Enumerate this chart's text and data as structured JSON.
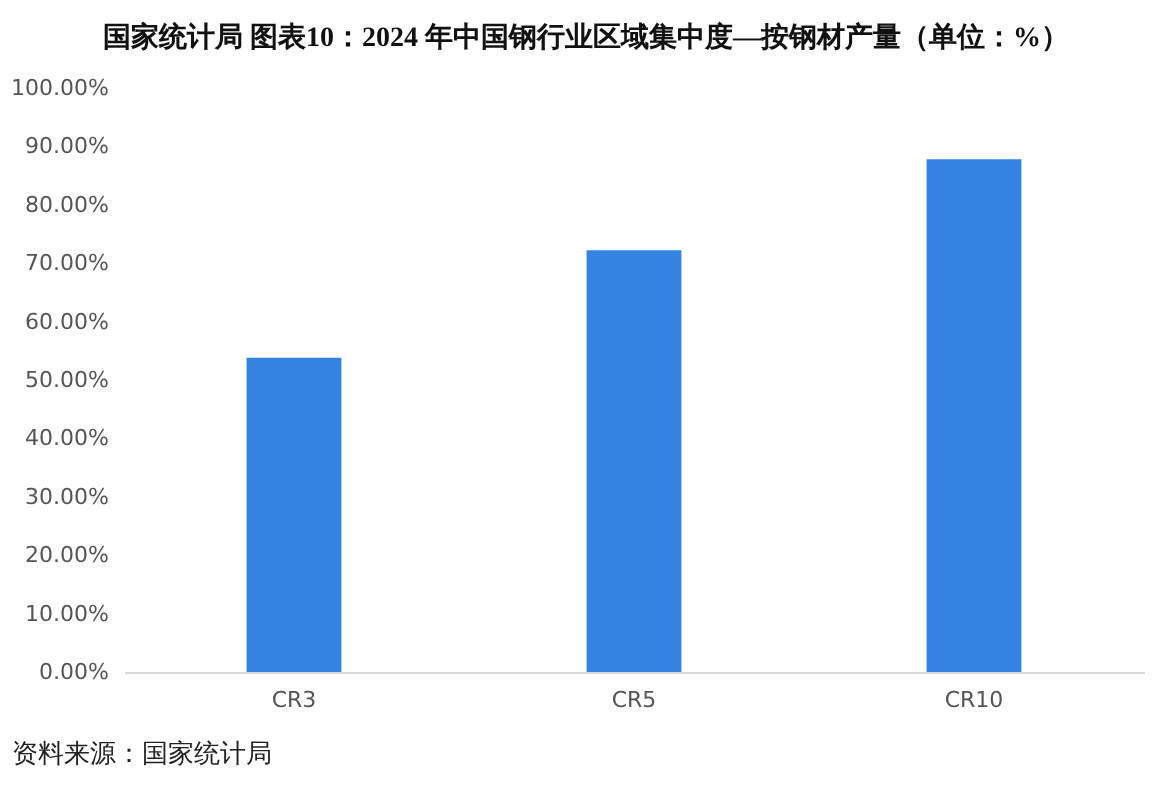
{
  "chart_data": {
    "type": "bar",
    "title": "国家统计局  图表10：2024 年中国钢行业区域集中度—按钢材产量（单位：%）",
    "categories": [
      "CR3",
      "CR5",
      "CR10"
    ],
    "values": [
      53.8,
      72.2,
      87.8
    ],
    "color": "#3584e4",
    "ylim": [
      0,
      100
    ],
    "yticks": [
      {
        "value": 0,
        "label": "0.00%"
      },
      {
        "value": 10,
        "label": "10.00%"
      },
      {
        "value": 20,
        "label": "20.00%"
      },
      {
        "value": 30,
        "label": "30.00%"
      },
      {
        "value": 40,
        "label": "40.00%"
      },
      {
        "value": 50,
        "label": "50.00%"
      },
      {
        "value": 60,
        "label": "60.00%"
      },
      {
        "value": 70,
        "label": "70.00%"
      },
      {
        "value": 80,
        "label": "80.00%"
      },
      {
        "value": 90,
        "label": "90.00%"
      },
      {
        "value": 100,
        "label": "100.00%"
      }
    ],
    "grid": false,
    "annotations": [
      "资料来源：国家统计局"
    ]
  }
}
